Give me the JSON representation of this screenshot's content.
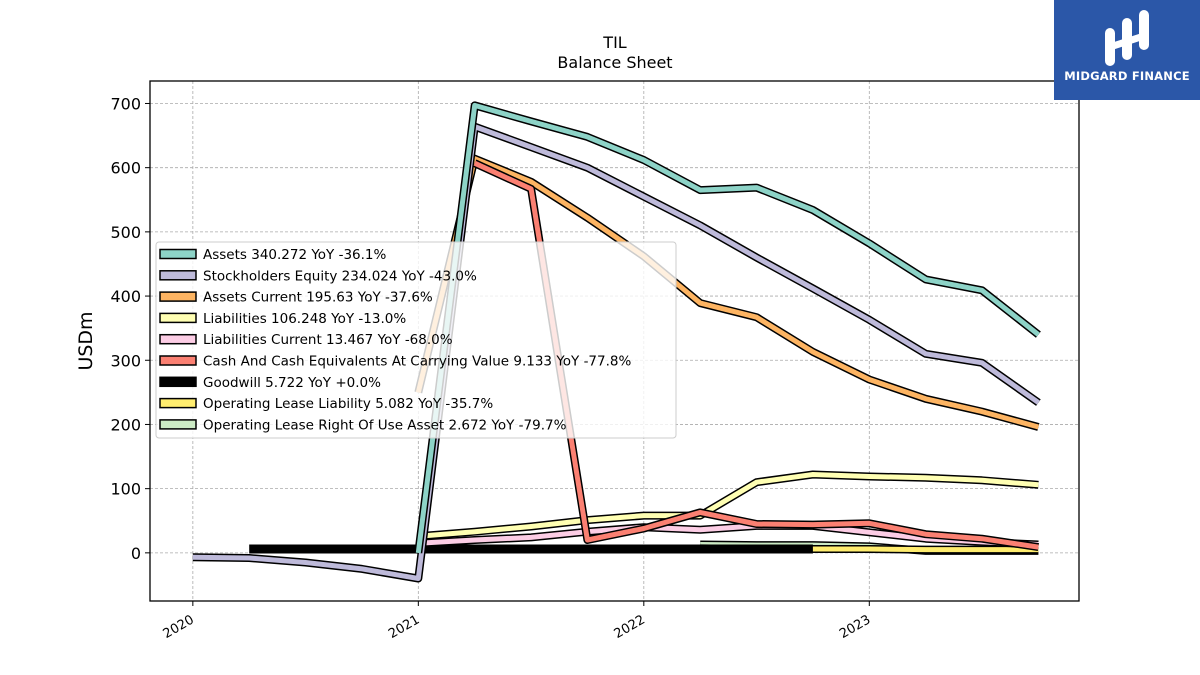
{
  "brand": {
    "name": "MIDGARD FINANCE",
    "background": "#2b57a8"
  },
  "chart_data": {
    "type": "line",
    "title": "TIL",
    "subtitle": "Balance  Sheet",
    "ylabel": "USDm",
    "xlabel": "",
    "ylim": [
      -75,
      735
    ],
    "xlim": [
      2019.81,
      2023.93
    ],
    "yticks": [
      0,
      100,
      200,
      300,
      400,
      500,
      600,
      700
    ],
    "xticks": [
      "2020",
      "2021",
      "2022",
      "2023"
    ],
    "grid": true,
    "legend_position": "left",
    "series": [
      {
        "name": "Assets",
        "legend": "Assets  340.272 YoY -36.1%",
        "color": "#8dd3c7",
        "points": [
          [
            2021.0,
            0
          ],
          [
            2021.25,
            697
          ],
          [
            2021.5,
            672
          ],
          [
            2021.75,
            648
          ],
          [
            2022.0,
            612
          ],
          [
            2022.25,
            565
          ],
          [
            2022.5,
            569
          ],
          [
            2022.75,
            534
          ],
          [
            2023.0,
            482
          ],
          [
            2023.25,
            426
          ],
          [
            2023.5,
            409
          ],
          [
            2023.75,
            340
          ]
        ]
      },
      {
        "name": "Stockholders Equity",
        "legend": "Stockholders Equity  234.024 YoY -43.0%",
        "color": "#bebada",
        "points": [
          [
            2020.0,
            -7
          ],
          [
            2020.25,
            -8
          ],
          [
            2020.5,
            -15
          ],
          [
            2020.75,
            -25
          ],
          [
            2021.0,
            -40
          ],
          [
            2021.25,
            664
          ],
          [
            2021.5,
            632
          ],
          [
            2021.75,
            600
          ],
          [
            2022.0,
            555
          ],
          [
            2022.25,
            510
          ],
          [
            2022.5,
            460
          ],
          [
            2022.75,
            412
          ],
          [
            2023.0,
            363
          ],
          [
            2023.25,
            310
          ],
          [
            2023.5,
            296
          ],
          [
            2023.75,
            234
          ]
        ]
      },
      {
        "name": "Assets Current",
        "legend": "Assets Current  195.63 YoY -37.6%",
        "color": "#fdb462",
        "points": [
          [
            2021.0,
            250
          ],
          [
            2021.25,
            614
          ],
          [
            2021.5,
            578
          ],
          [
            2021.75,
            522
          ],
          [
            2022.0,
            462
          ],
          [
            2022.25,
            389
          ],
          [
            2022.5,
            367
          ],
          [
            2022.75,
            313
          ],
          [
            2023.0,
            270
          ],
          [
            2023.25,
            240
          ],
          [
            2023.5,
            220
          ],
          [
            2023.75,
            196
          ]
        ]
      },
      {
        "name": "Liabilities",
        "legend": "Liabilities  106.248 YoY -13.0%",
        "color": "#ffffb3",
        "points": [
          [
            2021.0,
            26
          ],
          [
            2021.25,
            33
          ],
          [
            2021.5,
            41
          ],
          [
            2021.75,
            51
          ],
          [
            2022.0,
            58
          ],
          [
            2022.25,
            58
          ],
          [
            2022.5,
            110
          ],
          [
            2022.75,
            122
          ],
          [
            2023.0,
            119
          ],
          [
            2023.25,
            117
          ],
          [
            2023.5,
            113
          ],
          [
            2023.75,
            106
          ]
        ]
      },
      {
        "name": "Liabilities Current",
        "legend": "Liabilities Current  13.467 YoY -68.0%",
        "color": "#fccde5",
        "points": [
          [
            2021.0,
            15
          ],
          [
            2021.25,
            20
          ],
          [
            2021.5,
            24
          ],
          [
            2021.75,
            33
          ],
          [
            2022.0,
            40
          ],
          [
            2022.25,
            36
          ],
          [
            2022.5,
            42
          ],
          [
            2022.75,
            42
          ],
          [
            2023.0,
            32
          ],
          [
            2023.25,
            22
          ],
          [
            2023.5,
            17
          ],
          [
            2023.75,
            13
          ]
        ]
      },
      {
        "name": "Cash And Cash Equivalents At Carrying Value",
        "legend": "Cash And Cash Equivalents At Carrying Value  9.133 YoY -77.8%",
        "color": "#fb8072",
        "points": [
          [
            2021.25,
            607
          ],
          [
            2021.5,
            567
          ],
          [
            2021.75,
            20
          ],
          [
            2022.0,
            38
          ],
          [
            2022.25,
            63
          ],
          [
            2022.5,
            45
          ],
          [
            2022.75,
            44
          ],
          [
            2023.0,
            46
          ],
          [
            2023.25,
            29
          ],
          [
            2023.5,
            22
          ],
          [
            2023.75,
            9
          ]
        ]
      },
      {
        "name": "Goodwill",
        "legend": "Goodwill  5.722 YoY +0.0%",
        "color": "#000000",
        "points": [
          [
            2020.25,
            6
          ],
          [
            2022.75,
            6
          ]
        ]
      },
      {
        "name": "Operating Lease Liability",
        "legend": "Operating Lease Liability  5.082 YoY -35.7%",
        "color": "#ffed6f",
        "points": [
          [
            2022.25,
            7
          ],
          [
            2022.5,
            6
          ],
          [
            2022.75,
            6
          ],
          [
            2023.0,
            6
          ],
          [
            2023.25,
            5
          ],
          [
            2023.5,
            5
          ],
          [
            2023.75,
            5
          ]
        ]
      },
      {
        "name": "Operating Lease Right Of Use Asset",
        "legend": "Operating Lease Right Of Use Asset  2.672 YoY -79.7%",
        "color": "#ccebc5",
        "points": [
          [
            2022.25,
            13
          ],
          [
            2022.5,
            12
          ],
          [
            2022.75,
            12
          ],
          [
            2023.0,
            10
          ],
          [
            2023.25,
            3
          ],
          [
            2023.5,
            3
          ],
          [
            2023.75,
            3
          ]
        ]
      }
    ]
  }
}
